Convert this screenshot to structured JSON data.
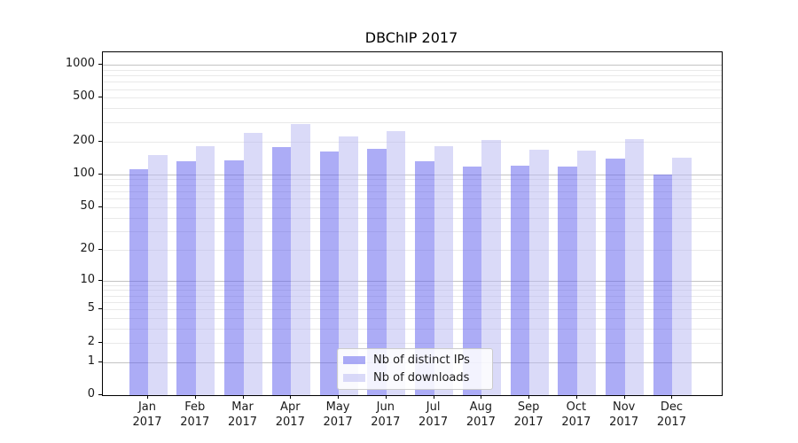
{
  "chart_data": {
    "type": "bar",
    "title": "DBChIP 2017",
    "categories": [
      {
        "line1": "Jan",
        "line2": "2017"
      },
      {
        "line1": "Feb",
        "line2": "2017"
      },
      {
        "line1": "Mar",
        "line2": "2017"
      },
      {
        "line1": "Apr",
        "line2": "2017"
      },
      {
        "line1": "May",
        "line2": "2017"
      },
      {
        "line1": "Jun",
        "line2": "2017"
      },
      {
        "line1": "Jul",
        "line2": "2017"
      },
      {
        "line1": "Aug",
        "line2": "2017"
      },
      {
        "line1": "Sep",
        "line2": "2017"
      },
      {
        "line1": "Oct",
        "line2": "2017"
      },
      {
        "line1": "Nov",
        "line2": "2017"
      },
      {
        "line1": "Dec",
        "line2": "2017"
      }
    ],
    "series": [
      {
        "name": "Nb of distinct IPs",
        "color": "#5f5fee",
        "values": [
          111,
          131,
          134,
          178,
          163,
          170,
          132,
          119,
          120,
          118,
          140,
          99
        ]
      },
      {
        "name": "Nb of downloads",
        "color": "#b9b9f2",
        "values": [
          150,
          180,
          240,
          286,
          224,
          250,
          180,
          205,
          167,
          165,
          210,
          143
        ]
      }
    ],
    "yscale": "log1p",
    "y_ticks": [
      0,
      1,
      2,
      5,
      10,
      20,
      50,
      100,
      200,
      500,
      1000
    ],
    "ylim": [
      0,
      1300
    ],
    "xlabel": "",
    "ylabel": "",
    "grid": true,
    "legend_position": "lower center inside axes",
    "colors": {
      "grid_major": "#c4c4c4",
      "grid_minor": "#e9e9e9",
      "spine": "#000000",
      "text": "#1a1a1a",
      "background": "#ffffff"
    }
  }
}
